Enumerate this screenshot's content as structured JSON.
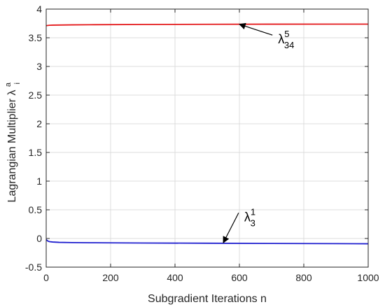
{
  "chart_data": {
    "type": "line",
    "xlabel": "Subgradient Iterations n",
    "ylabel": {
      "main": "Lagrangian Multiplier ",
      "symbol": "λ",
      "superscript": "a",
      "subscript": "i"
    },
    "xlim": [
      0,
      1000
    ],
    "ylim": [
      -0.5,
      4
    ],
    "xticks": [
      0,
      200,
      400,
      600,
      800,
      1000
    ],
    "xtick_labels": [
      "0",
      "200",
      "400",
      "600",
      "800",
      "1000"
    ],
    "yticks": [
      -0.5,
      0,
      0.5,
      1,
      1.5,
      2,
      2.5,
      3,
      3.5,
      4
    ],
    "ytick_labels": [
      "-0.5",
      "0",
      "0.5",
      "1",
      "1.5",
      "2",
      "2.5",
      "3",
      "3.5",
      "4"
    ],
    "grid": true,
    "series": [
      {
        "color": "#e41a1c",
        "x": [
          0,
          5,
          10,
          20,
          40,
          80,
          150,
          300,
          500,
          700,
          900,
          1000
        ],
        "y": [
          3.71,
          3.715,
          3.718,
          3.72,
          3.722,
          3.725,
          3.728,
          3.732,
          3.735,
          3.737,
          3.738,
          3.738
        ]
      },
      {
        "color": "#1f1fcf",
        "x": [
          0,
          2,
          5,
          10,
          20,
          40,
          80,
          150,
          300,
          500,
          700,
          900,
          1000
        ],
        "y": [
          -0.02,
          -0.03,
          -0.045,
          -0.055,
          -0.062,
          -0.068,
          -0.072,
          -0.075,
          -0.079,
          -0.083,
          -0.087,
          -0.09,
          -0.092
        ]
      }
    ],
    "annotations": [
      {
        "symbol": "λ",
        "sub": "34",
        "sup": "5",
        "text_x": 720,
        "text_y": 3.4,
        "arrow_to": [
          600,
          3.735
        ]
      },
      {
        "symbol": "λ",
        "sub": "3",
        "sup": "1",
        "text_x": 615,
        "text_y": 0.3,
        "arrow_to": [
          550,
          -0.075
        ]
      }
    ]
  }
}
